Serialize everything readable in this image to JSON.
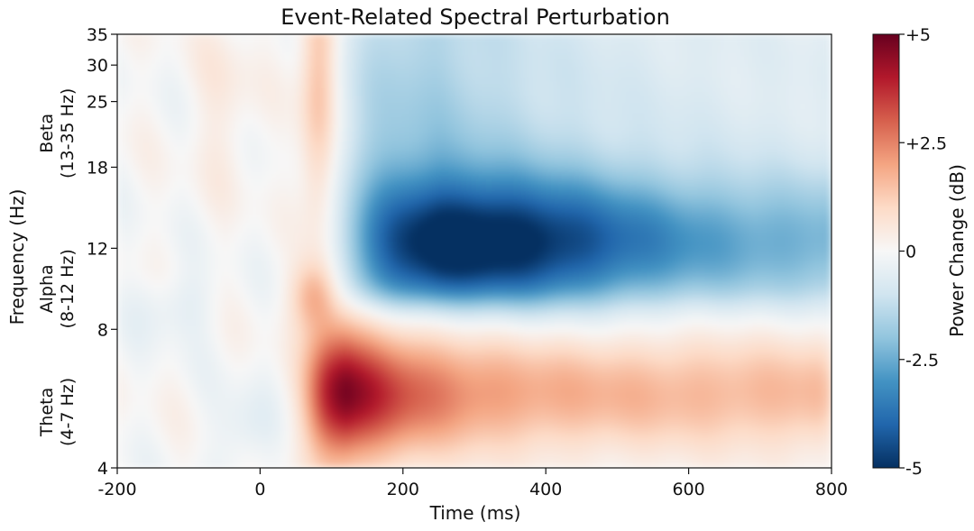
{
  "chart_data": {
    "type": "heatmap",
    "title": "Event-Related Spectral Perturbation",
    "xlabel": "Time (ms)",
    "ylabel": "Frequency (Hz)",
    "xlim": [
      -200,
      800
    ],
    "ylim": [
      4,
      35
    ],
    "yscale": "log",
    "x_ticks": [
      -200,
      0,
      200,
      400,
      600,
      800
    ],
    "x_tick_labels": [
      "-200",
      "0",
      "200",
      "400",
      "600",
      "800"
    ],
    "y_ticks": [
      4,
      8,
      12,
      18,
      25,
      30,
      35
    ],
    "y_tick_labels": [
      "4",
      "8",
      "12",
      "18",
      "25",
      "30",
      "35"
    ],
    "frequency_bands": [
      {
        "name": "Beta",
        "range_label": "(13-35 Hz)",
        "from_hz": 13,
        "to_hz": 35
      },
      {
        "name": "Alpha",
        "range_label": "(8-12 Hz)",
        "from_hz": 8,
        "to_hz": 12
      },
      {
        "name": "Theta",
        "range_label": "(4-7 Hz)",
        "from_hz": 4,
        "to_hz": 7
      }
    ],
    "colorbar": {
      "label": "Power Change (dB)",
      "range": [
        -5,
        5
      ],
      "ticks": [
        5,
        2.5,
        0,
        -2.5,
        -5
      ],
      "tick_labels": [
        "+5",
        "+2.5",
        "0",
        "-2.5",
        "-5"
      ],
      "colormap": "RdBu_r",
      "colors": [
        "#053061",
        "#2166ac",
        "#4393c3",
        "#92c5de",
        "#d1e5f0",
        "#f7f7f7",
        "#fddbc7",
        "#f4a582",
        "#d6604d",
        "#b2182b",
        "#67001f"
      ]
    },
    "features": [
      {
        "description_of": "theta increase",
        "time_ms": [
          80,
          800
        ],
        "freq_hz": [
          4,
          8
        ],
        "peak_time_ms": 140,
        "peak_freq_hz": 5.8,
        "peak_db": 5
      },
      {
        "description_of": "alpha/beta decrease",
        "time_ms": [
          100,
          800
        ],
        "freq_hz": [
          9,
          35
        ],
        "peak_time_ms": 330,
        "peak_freq_hz": 12.5,
        "peak_db": -4.5
      },
      {
        "description_of": "early broadband increase",
        "time_ms": [
          60,
          110
        ],
        "freq_hz": [
          8,
          35
        ],
        "peak_time_ms": 80,
        "peak_freq_hz": 33,
        "peak_db": 1.5
      }
    ]
  }
}
